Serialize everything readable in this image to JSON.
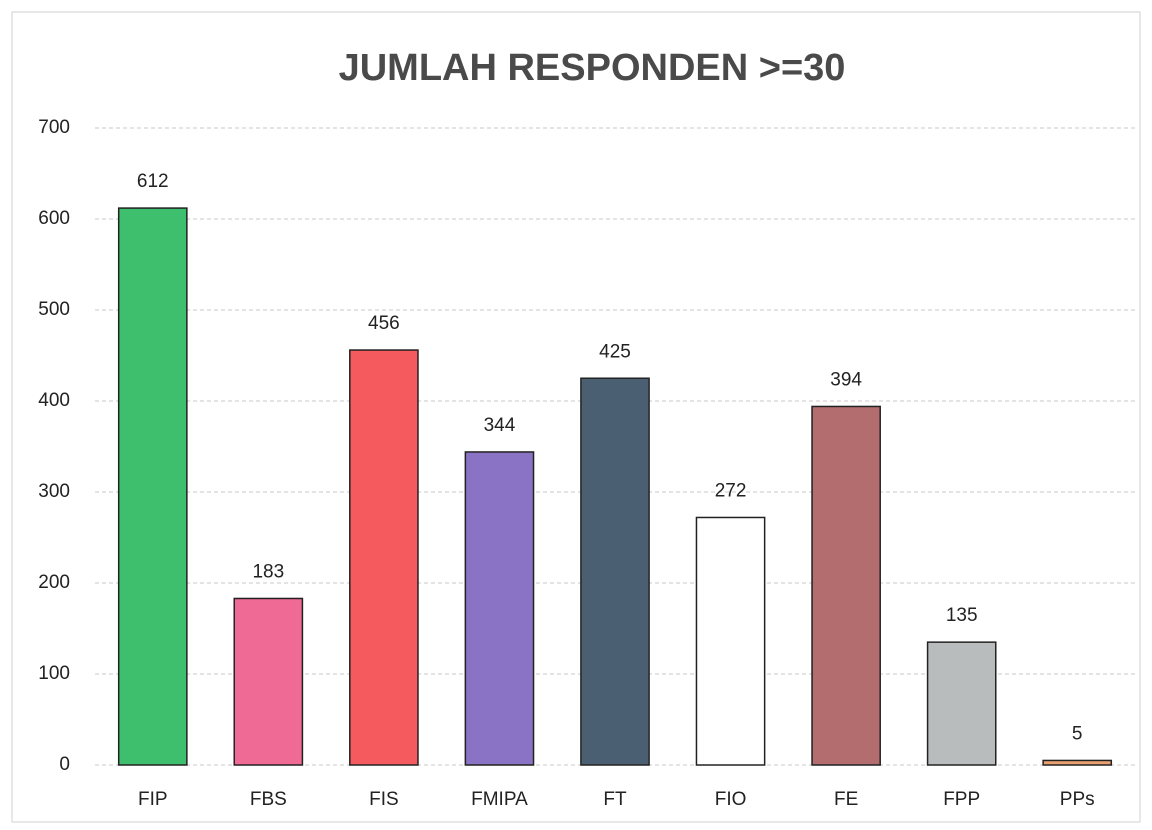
{
  "chart_data": {
    "type": "bar",
    "title": "JUMLAH RESPONDEN >=30",
    "categories": [
      "FIP",
      "FBS",
      "FIS",
      "FMIPA",
      "FT",
      "FIO",
      "FE",
      "FPP",
      "PPs"
    ],
    "values": [
      612,
      183,
      456,
      344,
      425,
      272,
      394,
      135,
      5
    ],
    "colors": [
      "#3dbf6e",
      "#f06a96",
      "#f55a5f",
      "#8a72c4",
      "#4a6072",
      "#ffffff",
      "#b46d6e",
      "#b9bcbd",
      "#e8a070"
    ],
    "ylim": [
      0,
      700
    ],
    "yticks": [
      0,
      100,
      200,
      300,
      400,
      500,
      600,
      700
    ],
    "grid": true
  }
}
